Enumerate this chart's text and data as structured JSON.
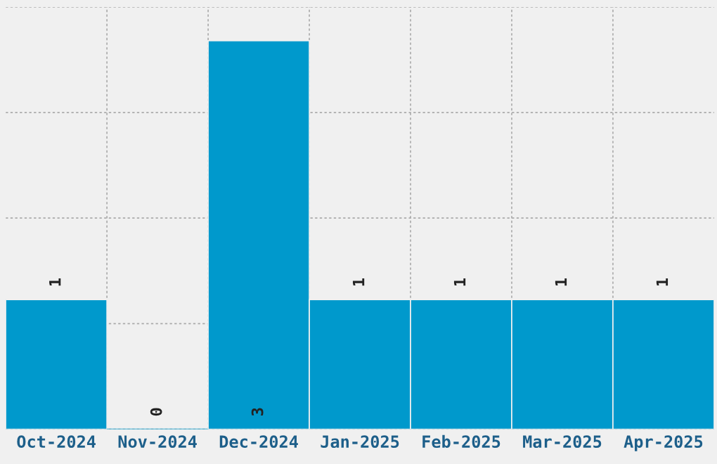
{
  "chart_data": {
    "type": "bar",
    "categories": [
      "Oct-2024",
      "Nov-2024",
      "Dec-2024",
      "Jan-2025",
      "Feb-2025",
      "Mar-2025",
      "Apr-2025"
    ],
    "values": [
      1,
      0,
      3,
      1,
      1,
      1,
      1
    ],
    "color": "#0099cc",
    "ylim": [
      0,
      3.26
    ],
    "yticks": [
      {
        "value": 0,
        "label": null
      },
      {
        "value": 0.815,
        "label": null
      },
      {
        "value": 1.63,
        "label": null
      },
      {
        "value": 2.445,
        "label": null
      },
      {
        "value": 3.26,
        "label": null
      }
    ],
    "tick_labels": "x",
    "grid": true,
    "data_labels": true
  }
}
